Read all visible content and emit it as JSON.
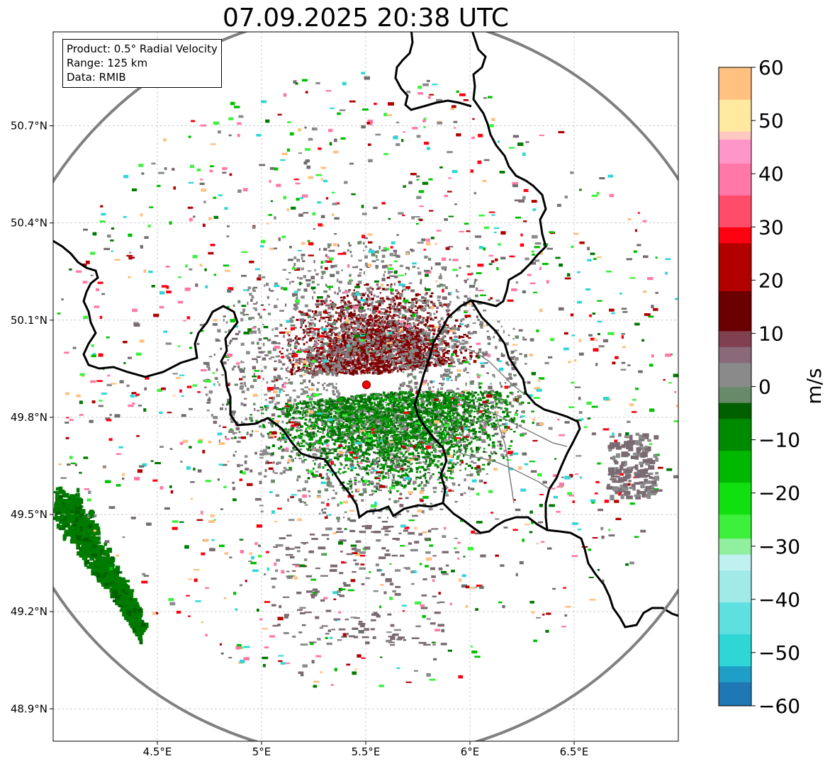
{
  "title": "07.09.2025 20:38 UTC",
  "info": {
    "product": "Product: 0.5° Radial Velocity",
    "range": "Range: 125 km",
    "source": "Data: RMIB"
  },
  "colorbar": {
    "label": "m/s",
    "min": -60,
    "max": 60,
    "ticks": [
      "60",
      "50",
      "40",
      "30",
      "20",
      "10",
      "0",
      "−10",
      "−20",
      "−30",
      "−40",
      "−50",
      "−60"
    ],
    "stops": [
      {
        "v": -60,
        "c": "#1f77b4"
      },
      {
        "v": -56,
        "c": "#1f9fc8"
      },
      {
        "v": -52,
        "c": "#2fd6d6"
      },
      {
        "v": -46,
        "c": "#5ee0e0"
      },
      {
        "v": -40,
        "c": "#a0eaea"
      },
      {
        "v": -35,
        "c": "#c0f0f0"
      },
      {
        "v": -31,
        "c": "#90f0a0"
      },
      {
        "v": -28,
        "c": "#3cf03c"
      },
      {
        "v": -24,
        "c": "#10e010"
      },
      {
        "v": -18,
        "c": "#00b800"
      },
      {
        "v": -12,
        "c": "#008a00"
      },
      {
        "v": -6,
        "c": "#006000"
      },
      {
        "v": -3,
        "c": "#688a68"
      },
      {
        "v": 0,
        "c": "#8a8a8a"
      },
      {
        "v": 4,
        "c": "#8a6a78"
      },
      {
        "v": 8,
        "c": "#804050"
      },
      {
        "v": 10,
        "c": "#6a0000"
      },
      {
        "v": 18,
        "c": "#b00000"
      },
      {
        "v": 27,
        "c": "#ff0010"
      },
      {
        "v": 30,
        "c": "#ff4c6a"
      },
      {
        "v": 36,
        "c": "#ff78a8"
      },
      {
        "v": 42,
        "c": "#ff96c8"
      },
      {
        "v": 46,
        "c": "#ffc8c0"
      },
      {
        "v": 48,
        "c": "#ffe8a0"
      },
      {
        "v": 54,
        "c": "#ffc080"
      },
      {
        "v": 60,
        "c": "#ff9a5a"
      }
    ]
  },
  "chart_data": {
    "type": "heatmap",
    "title": "07.09.2025 20:38 UTC",
    "xlim": [
      4.0,
      7.0
    ],
    "ylim": [
      48.8,
      50.99
    ],
    "x_ticks": [
      {
        "value": 4.5,
        "label": "4.5°E"
      },
      {
        "value": 5.0,
        "label": "5°E"
      },
      {
        "value": 5.5,
        "label": "5.5°E"
      },
      {
        "value": 6.0,
        "label": "6°E"
      },
      {
        "value": 6.5,
        "label": "6.5°E"
      }
    ],
    "y_ticks": [
      {
        "value": 50.7,
        "label": "50.7°N"
      },
      {
        "value": 50.4,
        "label": "50.4°N"
      },
      {
        "value": 50.1,
        "label": "50.1°N"
      },
      {
        "value": 49.8,
        "label": "49.8°N"
      },
      {
        "value": 49.5,
        "label": "49.5°N"
      },
      {
        "value": 49.2,
        "label": "49.2°N"
      },
      {
        "value": 48.9,
        "label": "48.9°N"
      }
    ],
    "grid": true,
    "radar_site": {
      "lon": 5.505,
      "lat": 49.915
    },
    "range_km": 125,
    "colorbar_label": "m/s",
    "value_range": [
      -60,
      60
    ],
    "echo_regions": [
      {
        "name": "receding core",
        "lon": 5.5,
        "lat": 50.05,
        "value": 12
      },
      {
        "name": "approaching core",
        "lon": 5.65,
        "lat": 49.74,
        "value": -12
      },
      {
        "name": "southwest band",
        "lon": 4.25,
        "lat": 49.4,
        "value": -10
      },
      {
        "name": "east cluster",
        "lon": 6.8,
        "lat": 49.67,
        "value": 4
      }
    ]
  }
}
